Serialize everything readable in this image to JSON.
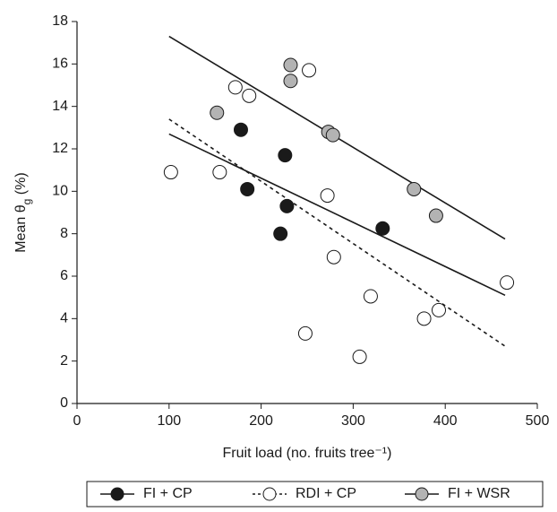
{
  "chart_data": {
    "type": "scatter",
    "x_label": "Fruit load (no. fruits tree⁻¹)",
    "y_label": [
      "Mean θ",
      "g",
      " (%)"
    ],
    "xlim": [
      0,
      500
    ],
    "xticks": [
      0,
      100,
      200,
      300,
      400,
      500
    ],
    "ylim": [
      0,
      18
    ],
    "yticks": [
      0,
      2,
      4,
      6,
      8,
      10,
      12,
      14,
      16,
      18
    ],
    "grid": false,
    "series": [
      {
        "name": "FI + CP",
        "color": "#1a1a1a",
        "line_style": "solid",
        "x": [
          178,
          185,
          226,
          221,
          228,
          332
        ],
        "values": [
          12.9,
          10.1,
          11.7,
          8.0,
          9.3,
          8.25
        ],
        "fit_x": [
          100,
          465
        ],
        "fit_y": [
          12.7,
          5.1
        ]
      },
      {
        "name": "RDI + CP",
        "color": "#ffffff",
        "line_style": "dashed",
        "x": [
          102,
          155,
          172,
          187,
          252,
          272,
          279,
          319,
          248,
          307,
          377,
          393,
          467
        ],
        "values": [
          10.9,
          10.9,
          14.9,
          14.5,
          15.7,
          9.8,
          6.9,
          5.05,
          3.3,
          2.2,
          4.0,
          4.4,
          5.7
        ],
        "fit_x": [
          100,
          465
        ],
        "fit_y": [
          13.4,
          2.7
        ]
      },
      {
        "name": "FI + WSR",
        "color": "#b3b3b3",
        "line_style": "solid",
        "x": [
          152,
          232,
          232,
          273,
          278,
          366,
          390
        ],
        "values": [
          13.7,
          15.95,
          15.2,
          12.8,
          12.65,
          10.1,
          8.85
        ],
        "fit_x": [
          100,
          465
        ],
        "fit_y": [
          17.3,
          7.75
        ]
      }
    ]
  }
}
